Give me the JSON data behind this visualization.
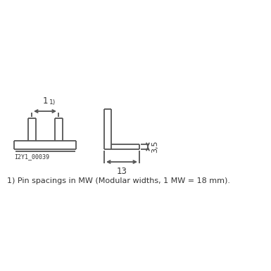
{
  "bg_color": "#ffffff",
  "line_color": "#555555",
  "text_color": "#333333",
  "lw": 1.3,
  "fig_w": 3.85,
  "fig_h": 3.85,
  "dpi": 100,
  "footnote": "1) Pin spacings in MW (Modular widths, 1 MW = 18 mm).",
  "label_id": "I2Y1_00039",
  "dim1_label": "1",
  "sup1": "1)",
  "dim13_label": "13",
  "dim35_label": "3,5"
}
